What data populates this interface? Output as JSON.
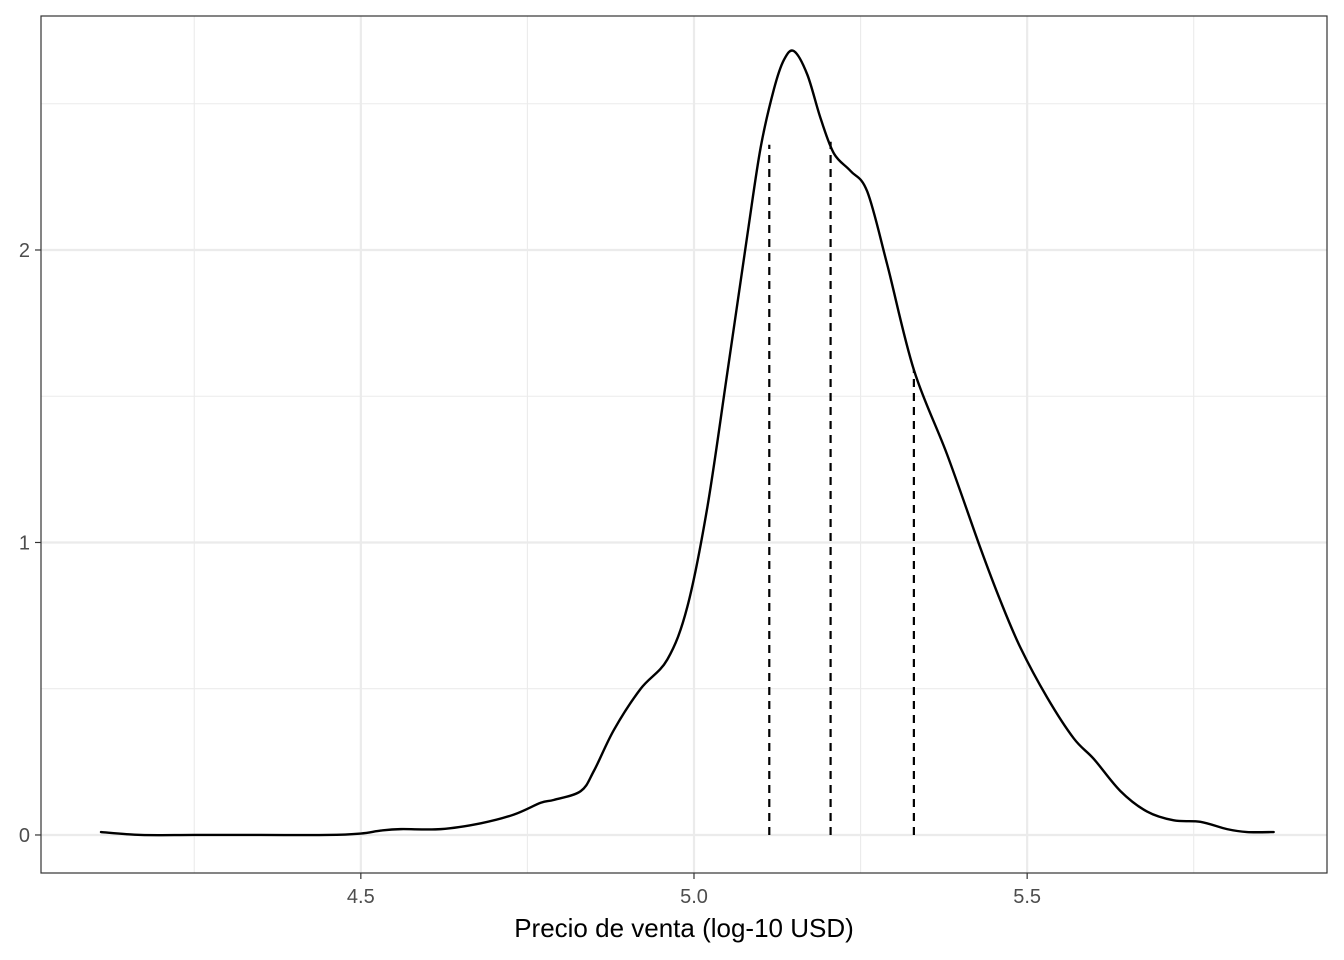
{
  "chart_data": {
    "type": "area",
    "title": "",
    "xlabel": "Precio de venta (log-10 USD)",
    "ylabel": "",
    "xlim": [
      4.02,
      5.95
    ],
    "ylim": [
      -0.13,
      2.8
    ],
    "x_ticks": [
      4.5,
      5.0,
      5.5
    ],
    "x_tick_labels": [
      "4.5",
      "5.0",
      "5.5"
    ],
    "x_minor_ticks": [
      4.25,
      4.75,
      5.25,
      5.75
    ],
    "y_ticks": [
      0,
      1,
      2
    ],
    "y_tick_labels": [
      "0",
      "1",
      "2"
    ],
    "y_minor_ticks": [
      0.5,
      1.5,
      2.5
    ],
    "grid": true,
    "legend": "none",
    "colors": {
      "curve": "#000000",
      "grid": "#ebebeb",
      "panel_border": "#333333",
      "quantile_lines": "#000000"
    },
    "series": [
      {
        "x": [
          4.11,
          4.17,
          4.25,
          4.35,
          4.45,
          4.5,
          4.53,
          4.56,
          4.62,
          4.68,
          4.73,
          4.77,
          4.79,
          4.83,
          4.85,
          4.88,
          4.92,
          4.96,
          4.99,
          5.02,
          5.05,
          5.08,
          5.1,
          5.12,
          5.135,
          5.15,
          5.17,
          5.19,
          5.21,
          5.235,
          5.26,
          5.29,
          5.33,
          5.38,
          5.43,
          5.46,
          5.49,
          5.53,
          5.57,
          5.6,
          5.64,
          5.68,
          5.72,
          5.76,
          5.8,
          5.83,
          5.87
        ],
        "values": [
          0.01,
          0.0,
          0.0,
          0.0,
          0.0,
          0.005,
          0.015,
          0.02,
          0.02,
          0.04,
          0.07,
          0.11,
          0.12,
          0.15,
          0.22,
          0.36,
          0.5,
          0.6,
          0.78,
          1.12,
          1.58,
          2.05,
          2.35,
          2.55,
          2.65,
          2.68,
          2.6,
          2.45,
          2.33,
          2.27,
          2.2,
          1.95,
          1.59,
          1.3,
          0.98,
          0.8,
          0.64,
          0.47,
          0.33,
          0.26,
          0.15,
          0.08,
          0.05,
          0.045,
          0.02,
          0.01,
          0.01
        ]
      }
    ],
    "quantile_lines": [
      {
        "x": 5.113,
        "y": 2.36
      },
      {
        "x": 5.205,
        "y": 2.37
      },
      {
        "x": 5.33,
        "y": 1.59
      }
    ]
  }
}
